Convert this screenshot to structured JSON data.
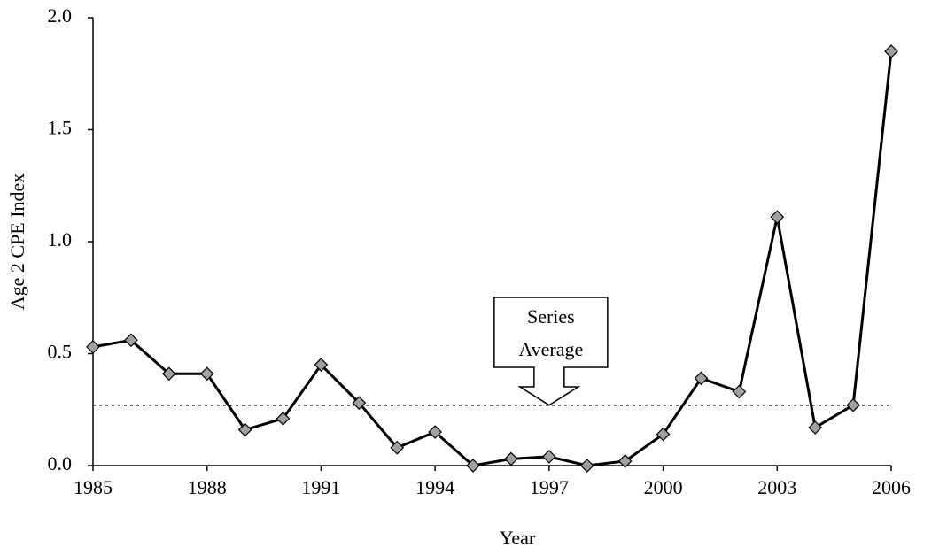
{
  "chart_data": {
    "type": "line",
    "x_label": "Year",
    "y_label": "Age 2 CPE Index",
    "x": [
      1985,
      1986,
      1987,
      1988,
      1989,
      1990,
      1991,
      1992,
      1993,
      1994,
      1995,
      1996,
      1997,
      1998,
      1999,
      2000,
      2001,
      2002,
      2003,
      2004,
      2005,
      2006
    ],
    "series": [
      {
        "name": "Age 2 CPE Index",
        "color": "#000000",
        "marker_color": "#a0a0a0",
        "values": [
          0.53,
          0.56,
          0.41,
          0.41,
          0.16,
          0.21,
          0.45,
          0.28,
          0.08,
          0.15,
          0.0,
          0.03,
          0.04,
          0.0,
          0.02,
          0.14,
          0.39,
          0.33,
          1.11,
          0.17,
          0.27,
          1.85
        ]
      }
    ],
    "xlim": [
      1985,
      2006
    ],
    "xticks": [
      1985,
      1988,
      1991,
      1994,
      1997,
      2000,
      2003,
      2006
    ],
    "ylim": [
      0,
      2.0
    ],
    "yticks": [
      {
        "value": 0,
        "label": "0.0"
      },
      {
        "value": 0.5,
        "label": "0.5"
      },
      {
        "value": 1.0,
        "label": "1.0"
      },
      {
        "value": 1.5,
        "label": "1.5"
      },
      {
        "value": 2.0,
        "label": "2.0"
      }
    ],
    "reference_line": {
      "value": 0.27,
      "annotation_x": 1997,
      "annotation": [
        "Series",
        "Average"
      ]
    },
    "grid": false
  }
}
